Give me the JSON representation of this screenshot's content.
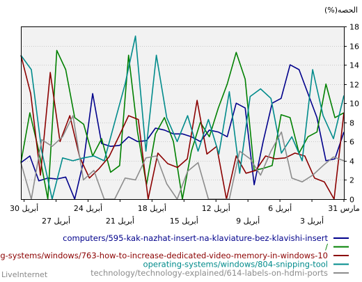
{
  "chart_data": {
    "type": "line",
    "ylabel": "(%)الحصه",
    "ylim": [
      0,
      18
    ],
    "yticks": [
      0,
      2,
      4,
      6,
      8,
      10,
      12,
      14,
      16,
      18
    ],
    "x_direction": "right-to-left",
    "grid": true,
    "legend_position": "bottom",
    "date_labels_top": [
      "31 مارس",
      "6 أبريل",
      "12 أبريل",
      "18 أبريل",
      "24 أبريل",
      "30 أبريل"
    ],
    "date_labels_bottom": [
      "3 أبريل",
      "9 أبريل",
      "15 أبريل",
      "21 أبريل",
      "27 أبريل"
    ],
    "series": [
      {
        "name": "computers/595-kak-nazhat-insert-na-klaviature-bez-klavishi-insert",
        "color": "#00008b",
        "values": [
          7.0,
          4.2,
          4.0,
          8.5,
          11.0,
          13.5,
          14.0,
          10.5,
          10.0,
          6.0,
          1.5,
          9.5,
          10.0,
          6.5,
          7.0,
          7.2,
          6.0,
          6.5,
          6.8,
          6.8,
          7.2,
          7.4,
          6.1,
          6.0,
          6.5,
          5.6,
          5.5,
          5.8,
          11.0,
          4.0,
          0.0,
          2.3,
          2.1,
          2.2,
          1.9,
          4.5,
          3.8
        ]
      },
      {
        "name": "/",
        "color": "#008000",
        "values": [
          9.0,
          8.5,
          12.0,
          7.0,
          6.5,
          4.8,
          8.5,
          8.8,
          3.5,
          3.2,
          3.0,
          12.5,
          15.3,
          12.0,
          9.5,
          6.5,
          8.0,
          5.0,
          0.0,
          6.0,
          8.5,
          6.8,
          1.5,
          7.0,
          15.0,
          3.5,
          2.8,
          6.3,
          4.5,
          7.8,
          8.5,
          13.5,
          15.5,
          0.0,
          5.0,
          9.0,
          3.8
        ]
      },
      {
        "name": "operating-systems/windows/763-how-to-increase-dedicated-video-memory-in-windows-10",
        "color": "#8b0000",
        "values": [
          9.0,
          0.0,
          1.8,
          2.2,
          4.5,
          4.8,
          4.3,
          4.2,
          4.5,
          3.0,
          2.7,
          4.5,
          0.0,
          5.5,
          4.7,
          10.3,
          4.2,
          3.3,
          3.7,
          4.8,
          0.0,
          8.3,
          8.7,
          6.5,
          4.4,
          3.2,
          2.2,
          4.4,
          8.7,
          6.0,
          13.2,
          2.5,
          11.0,
          15.0
        ]
      },
      {
        "name": "operating-systems/windows/804-snipping-tool",
        "color": "#008b8b",
        "values": [
          10.8,
          6.3,
          8.7,
          13.5,
          4.0,
          6.5,
          4.8,
          10.5,
          11.5,
          10.7,
          2.7,
          11.2,
          4.7,
          8.3,
          5.0,
          8.7,
          6.0,
          8.5,
          15.0,
          5.0,
          17.0,
          12.0,
          8.0,
          4.0,
          4.5,
          4.3,
          4.0,
          4.3,
          0.0,
          5.0,
          13.5,
          15.0
        ]
      },
      {
        "name": "technology/technology-explained/614-labels-on-hdmi-ports",
        "color": "#8c8c8c",
        "values": [
          4.0,
          4.4,
          3.5,
          2.5,
          1.8,
          2.2,
          7.0,
          5.0,
          2.5,
          4.2,
          5.0,
          0.0,
          0.0,
          0.0,
          3.8,
          2.9,
          0.0,
          1.6,
          4.5,
          4.3,
          2.0,
          2.2,
          0.0,
          0.0,
          3.0,
          2.0,
          8.7,
          6.5,
          5.5,
          6.2,
          0.0,
          3.8
        ]
      }
    ]
  },
  "legend": [
    {
      "label": "computers/595-kak-nazhat-insert-na-klaviature-bez-klavishi-insert",
      "color": "#00008b"
    },
    {
      "label": "/",
      "color": "#008000"
    },
    {
      "label": "operating-systems/windows/763-how-to-increase-dedicated-video-memory-in-windows-10",
      "color": "#8b0000"
    },
    {
      "label": "operating-systems/windows/804-snipping-tool",
      "color": "#008b8b"
    },
    {
      "label": "technology/technology-explained/614-labels-on-hdmi-ports",
      "color": "#8c8c8c"
    }
  ],
  "branding": {
    "text": "LiveInternet"
  }
}
